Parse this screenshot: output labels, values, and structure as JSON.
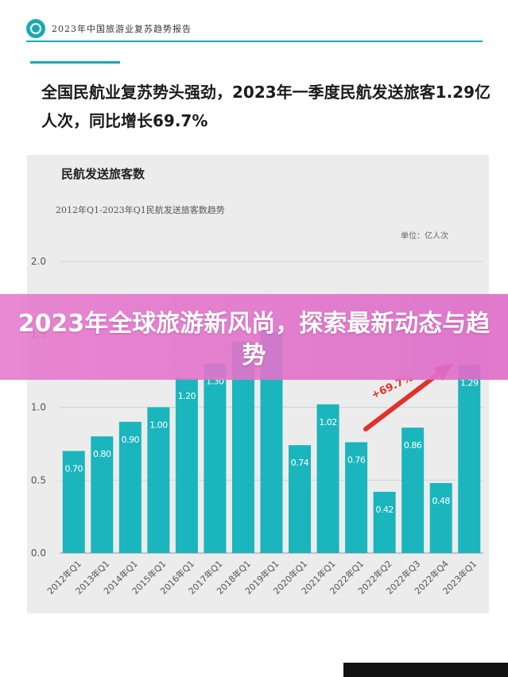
{
  "header": {
    "report_name": "2023年中国旅游业复苏趋势报告",
    "accent_color": "#1aa9b4"
  },
  "headline": "全国民航业复苏势头强劲，2023年一季度民航发送旅客1.29亿人次，同比增长69.7%",
  "banner": {
    "text": "2023年全球旅游新风尚，探索最新动态与趋势",
    "color": "#e478cd"
  },
  "chart_data": {
    "type": "bar",
    "title": "民航发送旅客数",
    "subtitle": "2012年Q1-2023年Q1民航发送旅客数趋势",
    "unit": "单位：亿人次",
    "categories": [
      "2012年Q1",
      "2013年Q1",
      "2014年Q1",
      "2015年Q1",
      "2016年Q1",
      "2017年Q1",
      "2018年Q1",
      "2019年Q1",
      "2020年Q1",
      "2021年Q1",
      "2022年Q1",
      "2022年Q2",
      "2022年Q3",
      "2022年Q4",
      "2023年Q1"
    ],
    "values": [
      0.7,
      0.8,
      0.9,
      1.0,
      1.2,
      1.3,
      1.45,
      1.52,
      0.74,
      1.02,
      0.76,
      0.42,
      0.86,
      0.48,
      1.29
    ],
    "value_labels": [
      "0.70",
      "0.80",
      "0.90",
      "1.00",
      "1.20",
      "1.30",
      "",
      "",
      "0.74",
      "1.02",
      "0.76",
      "0.42",
      "0.86",
      "0.48",
      "1.29"
    ],
    "yticks": [
      "0.0",
      "0.5",
      "1.0",
      "1.5",
      "2.0"
    ],
    "ylim": [
      0,
      2.0
    ],
    "grid": true,
    "bar_color": "#1bb5bd",
    "highlight_color": "#7a6fb5",
    "annotation": "+69.7%",
    "annotation_color": "#e2312a"
  }
}
